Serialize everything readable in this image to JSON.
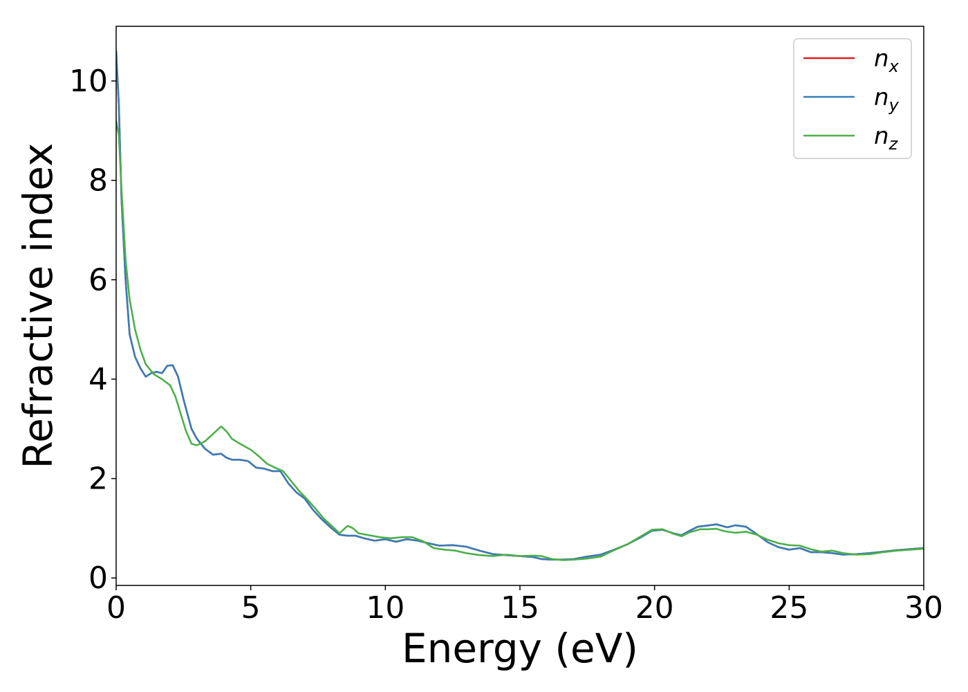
{
  "chart_data": {
    "type": "line",
    "xlabel": "Energy (eV)",
    "ylabel": "Refractive index",
    "xlim": [
      0,
      30
    ],
    "ylim": [
      -0.15,
      11.1
    ],
    "xticks": [
      0,
      5,
      10,
      15,
      20,
      25,
      30
    ],
    "yticks": [
      0,
      2,
      4,
      6,
      8,
      10
    ],
    "grid": false,
    "legend_position": "top-right",
    "series": [
      {
        "name": "n",
        "subscript": "x",
        "color": "#e41a1c",
        "x": [
          0.0,
          0.1,
          0.2,
          0.35,
          0.5,
          0.7,
          0.9,
          1.1,
          1.3,
          1.5,
          1.7,
          1.9,
          2.1,
          2.3,
          2.5,
          2.8,
          3.0,
          3.3,
          3.6,
          3.9,
          4.1,
          4.3,
          4.6,
          4.9,
          5.2,
          5.5,
          5.8,
          6.1,
          6.4,
          6.7,
          7.0,
          7.3,
          7.6,
          8.0,
          8.3,
          8.6,
          8.9,
          9.2,
          9.6,
          10.0,
          10.4,
          10.8,
          11.2,
          11.6,
          12.0,
          12.5,
          13.0,
          13.5,
          14.0,
          14.5,
          15.0,
          15.5,
          15.8,
          16.2,
          16.6,
          17.0,
          17.5,
          18.0,
          18.5,
          19.0,
          19.5,
          19.9,
          20.3,
          20.7,
          21.0,
          21.3,
          21.6,
          21.9,
          22.3,
          22.7,
          23.0,
          23.4,
          23.8,
          24.2,
          24.6,
          25.0,
          25.4,
          25.8,
          26.2,
          26.6,
          27.0,
          27.5,
          28.0,
          28.5,
          29.0,
          29.5,
          30.0
        ],
        "values": [
          10.6,
          9.5,
          7.6,
          6.0,
          4.9,
          4.45,
          4.22,
          4.05,
          4.12,
          4.15,
          4.12,
          4.27,
          4.28,
          4.05,
          3.6,
          3.0,
          2.8,
          2.6,
          2.48,
          2.5,
          2.42,
          2.38,
          2.38,
          2.35,
          2.22,
          2.2,
          2.15,
          2.15,
          1.9,
          1.72,
          1.6,
          1.38,
          1.2,
          1.0,
          0.87,
          0.85,
          0.85,
          0.8,
          0.75,
          0.78,
          0.73,
          0.78,
          0.75,
          0.7,
          0.65,
          0.66,
          0.63,
          0.55,
          0.48,
          0.46,
          0.44,
          0.42,
          0.38,
          0.37,
          0.37,
          0.38,
          0.43,
          0.47,
          0.57,
          0.68,
          0.82,
          0.95,
          0.97,
          0.9,
          0.86,
          0.95,
          1.03,
          1.05,
          1.08,
          1.02,
          1.06,
          1.03,
          0.88,
          0.72,
          0.62,
          0.57,
          0.6,
          0.52,
          0.52,
          0.5,
          0.47,
          0.48,
          0.5,
          0.53,
          0.56,
          0.58,
          0.6
        ]
      },
      {
        "name": "n",
        "subscript": "y",
        "color": "#377eb8",
        "x": [
          0.0,
          0.1,
          0.2,
          0.35,
          0.5,
          0.7,
          0.9,
          1.1,
          1.3,
          1.5,
          1.7,
          1.9,
          2.1,
          2.3,
          2.5,
          2.8,
          3.0,
          3.3,
          3.6,
          3.9,
          4.1,
          4.3,
          4.6,
          4.9,
          5.2,
          5.5,
          5.8,
          6.1,
          6.4,
          6.7,
          7.0,
          7.3,
          7.6,
          8.0,
          8.3,
          8.6,
          8.9,
          9.2,
          9.6,
          10.0,
          10.4,
          10.8,
          11.2,
          11.6,
          12.0,
          12.5,
          13.0,
          13.5,
          14.0,
          14.5,
          15.0,
          15.5,
          15.8,
          16.2,
          16.6,
          17.0,
          17.5,
          18.0,
          18.5,
          19.0,
          19.5,
          19.9,
          20.3,
          20.7,
          21.0,
          21.3,
          21.6,
          21.9,
          22.3,
          22.7,
          23.0,
          23.4,
          23.8,
          24.2,
          24.6,
          25.0,
          25.4,
          25.8,
          26.2,
          26.6,
          27.0,
          27.5,
          28.0,
          28.5,
          29.0,
          29.5,
          30.0
        ],
        "values": [
          10.6,
          9.5,
          7.6,
          6.0,
          4.9,
          4.45,
          4.22,
          4.05,
          4.12,
          4.15,
          4.12,
          4.27,
          4.28,
          4.05,
          3.6,
          3.0,
          2.8,
          2.6,
          2.48,
          2.5,
          2.42,
          2.38,
          2.38,
          2.35,
          2.22,
          2.2,
          2.15,
          2.15,
          1.9,
          1.72,
          1.6,
          1.38,
          1.2,
          1.0,
          0.87,
          0.85,
          0.85,
          0.8,
          0.75,
          0.78,
          0.73,
          0.78,
          0.75,
          0.7,
          0.65,
          0.66,
          0.63,
          0.55,
          0.48,
          0.46,
          0.44,
          0.42,
          0.38,
          0.37,
          0.37,
          0.38,
          0.43,
          0.47,
          0.57,
          0.68,
          0.82,
          0.95,
          0.97,
          0.9,
          0.86,
          0.95,
          1.03,
          1.05,
          1.08,
          1.02,
          1.06,
          1.03,
          0.88,
          0.72,
          0.62,
          0.57,
          0.6,
          0.52,
          0.52,
          0.5,
          0.47,
          0.48,
          0.5,
          0.53,
          0.56,
          0.58,
          0.6
        ]
      },
      {
        "name": "n",
        "subscript": "z",
        "color": "#4daf4a",
        "x": [
          0.0,
          0.1,
          0.2,
          0.35,
          0.5,
          0.7,
          0.9,
          1.1,
          1.4,
          1.7,
          2.0,
          2.2,
          2.4,
          2.6,
          2.8,
          3.0,
          3.3,
          3.6,
          3.9,
          4.1,
          4.3,
          4.6,
          5.0,
          5.3,
          5.6,
          5.9,
          6.2,
          6.5,
          6.8,
          7.1,
          7.4,
          7.7,
          8.0,
          8.3,
          8.6,
          8.8,
          9.0,
          9.4,
          9.8,
          10.2,
          10.6,
          11.0,
          11.4,
          11.8,
          12.2,
          12.6,
          13.0,
          13.5,
          14.0,
          14.5,
          15.0,
          15.5,
          15.8,
          16.2,
          16.6,
          17.0,
          17.5,
          18.0,
          18.5,
          19.0,
          19.5,
          19.9,
          20.3,
          20.7,
          21.0,
          21.3,
          21.7,
          22.0,
          22.3,
          22.6,
          23.0,
          23.4,
          23.8,
          24.2,
          24.6,
          25.0,
          25.4,
          25.8,
          26.2,
          26.6,
          27.0,
          27.5,
          28.0,
          28.5,
          29.0,
          29.5,
          30.0
        ],
        "values": [
          9.2,
          8.9,
          7.8,
          6.4,
          5.6,
          5.0,
          4.6,
          4.3,
          4.1,
          4.0,
          3.88,
          3.65,
          3.3,
          2.95,
          2.7,
          2.67,
          2.75,
          2.9,
          3.05,
          2.95,
          2.8,
          2.7,
          2.58,
          2.45,
          2.3,
          2.22,
          2.15,
          1.95,
          1.75,
          1.58,
          1.4,
          1.2,
          1.05,
          0.9,
          1.05,
          1.0,
          0.9,
          0.86,
          0.82,
          0.8,
          0.82,
          0.82,
          0.74,
          0.6,
          0.57,
          0.55,
          0.5,
          0.46,
          0.44,
          0.47,
          0.44,
          0.45,
          0.44,
          0.38,
          0.36,
          0.37,
          0.39,
          0.43,
          0.56,
          0.68,
          0.84,
          0.97,
          0.98,
          0.89,
          0.84,
          0.92,
          0.98,
          0.98,
          0.99,
          0.94,
          0.91,
          0.93,
          0.87,
          0.77,
          0.7,
          0.66,
          0.65,
          0.58,
          0.53,
          0.55,
          0.5,
          0.47,
          0.48,
          0.52,
          0.55,
          0.57,
          0.59
        ]
      }
    ]
  }
}
